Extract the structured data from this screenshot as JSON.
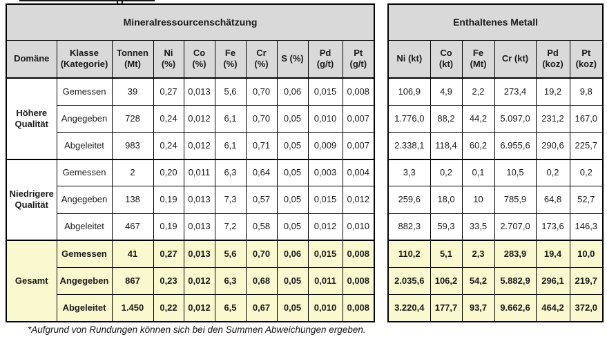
{
  "colors": {
    "header_bg": "#d9d9d9",
    "highlight_bg": "#faf8ce",
    "border": "#000000",
    "text": "#1a1a1a"
  },
  "chart_data": {
    "type": "table",
    "tables": [
      {
        "title": "Mineralressourcenschätzung",
        "columns": [
          "Domäne",
          "Klasse\n(Kategorie)",
          "Tonnen\n(Mt)",
          "Ni\n(%)",
          "Co\n(%)",
          "Fe\n(%)",
          "Cr\n(%)",
          "S (%)",
          "Pd\n(g/t)",
          "Pt\n(g/t)"
        ]
      },
      {
        "title": "Enthaltenes Metall",
        "columns": [
          "Ni (kt)",
          "Co\n(kt)",
          "Fe\n(Mt)",
          "Cr (kt)",
          "Pd\n(koz)",
          "Pt\n(koz)"
        ]
      }
    ],
    "groups": [
      {
        "domain": "Höhere\nQualität",
        "highlight": false,
        "rows": [
          {
            "klasse": "Gemessen",
            "resource": [
              "39",
              "0,27",
              "0,013",
              "5,6",
              "0,70",
              "0,06",
              "0,015",
              "0,008"
            ],
            "metal": [
              "106,9",
              "4,9",
              "2,2",
              "273,4",
              "19,2",
              "9,8"
            ]
          },
          {
            "klasse": "Angegeben",
            "resource": [
              "728",
              "0,24",
              "0,012",
              "6,1",
              "0,70",
              "0,05",
              "0,010",
              "0,007"
            ],
            "metal": [
              "1.776,0",
              "88,2",
              "44,2",
              "5.097,0",
              "231,2",
              "167,0"
            ]
          },
          {
            "klasse": "Abgeleitet",
            "resource": [
              "983",
              "0,24",
              "0,012",
              "6,1",
              "0,71",
              "0,05",
              "0,009",
              "0,007"
            ],
            "metal": [
              "2.338,1",
              "118,4",
              "60,2",
              "6.955,6",
              "290,6",
              "225,7"
            ]
          }
        ]
      },
      {
        "domain": "Niedrigere\nQualität",
        "highlight": false,
        "rows": [
          {
            "klasse": "Gemessen",
            "resource": [
              "2",
              "0,20",
              "0,011",
              "6,3",
              "0,64",
              "0,05",
              "0,003",
              "0,004"
            ],
            "metal": [
              "3,3",
              "0,2",
              "0,1",
              "10,5",
              "0,2",
              "0,2"
            ]
          },
          {
            "klasse": "Angegeben",
            "resource": [
              "138",
              "0,19",
              "0,013",
              "7,3",
              "0,57",
              "0,05",
              "0,015",
              "0,012"
            ],
            "metal": [
              "259,6",
              "18,0",
              "10",
              "785,9",
              "64,8",
              "52,7"
            ]
          },
          {
            "klasse": "Abgeleitet",
            "resource": [
              "467",
              "0,19",
              "0,013",
              "7,2",
              "0,58",
              "0,05",
              "0,012",
              "0,010"
            ],
            "metal": [
              "882,3",
              "59,3",
              "33,5",
              "2.707,0",
              "173,6",
              "146,3"
            ]
          }
        ]
      },
      {
        "domain": "Gesamt",
        "highlight": true,
        "rows": [
          {
            "klasse": "Gemessen",
            "resource": [
              "41",
              "0,27",
              "0,013",
              "5,6",
              "0,70",
              "0,06",
              "0,015",
              "0,008"
            ],
            "metal": [
              "110,2",
              "5,1",
              "2,3",
              "283,9",
              "19,4",
              "10,0"
            ]
          },
          {
            "klasse": "Angegeben",
            "resource": [
              "867",
              "0,23",
              "0,012",
              "6,3",
              "0,68",
              "0,05",
              "0,011",
              "0,008"
            ],
            "metal": [
              "2.035,6",
              "106,2",
              "54,2",
              "5.882,9",
              "296,1",
              "219,7"
            ]
          },
          {
            "klasse": "Abgeleitet",
            "resource": [
              "1.450",
              "0,22",
              "0,012",
              "6,5",
              "0,67",
              "0,05",
              "0,010",
              "0,008"
            ],
            "metal": [
              "3.220,4",
              "177,7",
              "93,7",
              "9.662,6",
              "464,2",
              "372,0"
            ]
          }
        ]
      }
    ],
    "footnote": "*Aufgrund von Rundungen können sich bei den Summen Abweichungen ergeben."
  }
}
